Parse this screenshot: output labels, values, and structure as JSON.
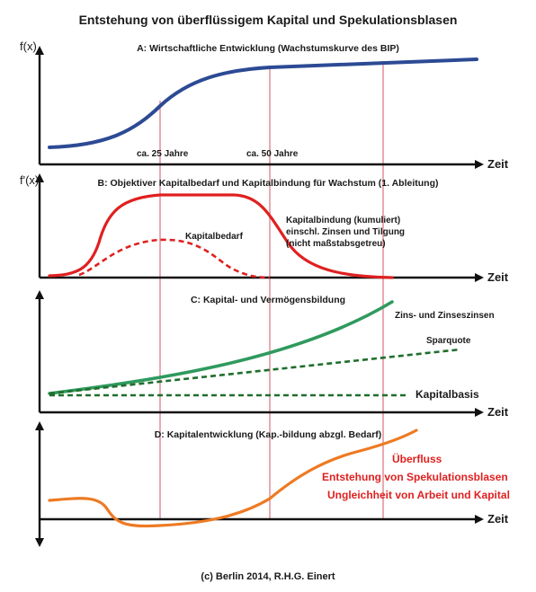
{
  "title": "Entstehung von überflüssigem Kapital und Spekulationsblasen",
  "footer": "(c) Berlin 2014, R.H.G. Einert",
  "colors": {
    "blue": "#2c4a94",
    "red": "#e02020",
    "green": "#2f9a5e",
    "dark_green": "#1f6e2c",
    "orange": "#ee7a22",
    "guide": "#d9727f"
  },
  "panel_a": {
    "ylabel": "f(x)",
    "heading": "A: Wirtschaftliche Entwicklung (Wachstumskurve des BIP)",
    "marker_25": "ca. 25 Jahre",
    "marker_50": "ca. 50 Jahre",
    "xlabel": "Zeit"
  },
  "panel_b": {
    "ylabel": "f'(x)",
    "heading": "B: Objektiver Kapitalbedarf und Kapitalbindung für Wachstum (1. Ableitung)",
    "kapitalbedarf": "Kapitalbedarf",
    "bindung_1": "Kapitalbindung (kumuliert)",
    "bindung_2": "einschl. Zinsen und Tilgung",
    "bindung_3": "(nicht maßstabsgetreu)",
    "xlabel": "Zeit"
  },
  "panel_c": {
    "heading": "C: Kapital- und Vermögensbildung",
    "zins": "Zins- und Zinseszinsen",
    "sparquote": "Sparquote",
    "kapitalbasis": "Kapitalbasis",
    "xlabel": "Zeit"
  },
  "panel_d": {
    "heading": "D: Kapitalentwicklung (Kap.-bildung abzgl. Bedarf)",
    "ueberfluss": "Überfluss",
    "blasen": "Entstehung von Spekulationsblasen",
    "ungleichheit": "Ungleichheit von Arbeit und Kapital",
    "xlabel": "Zeit"
  }
}
